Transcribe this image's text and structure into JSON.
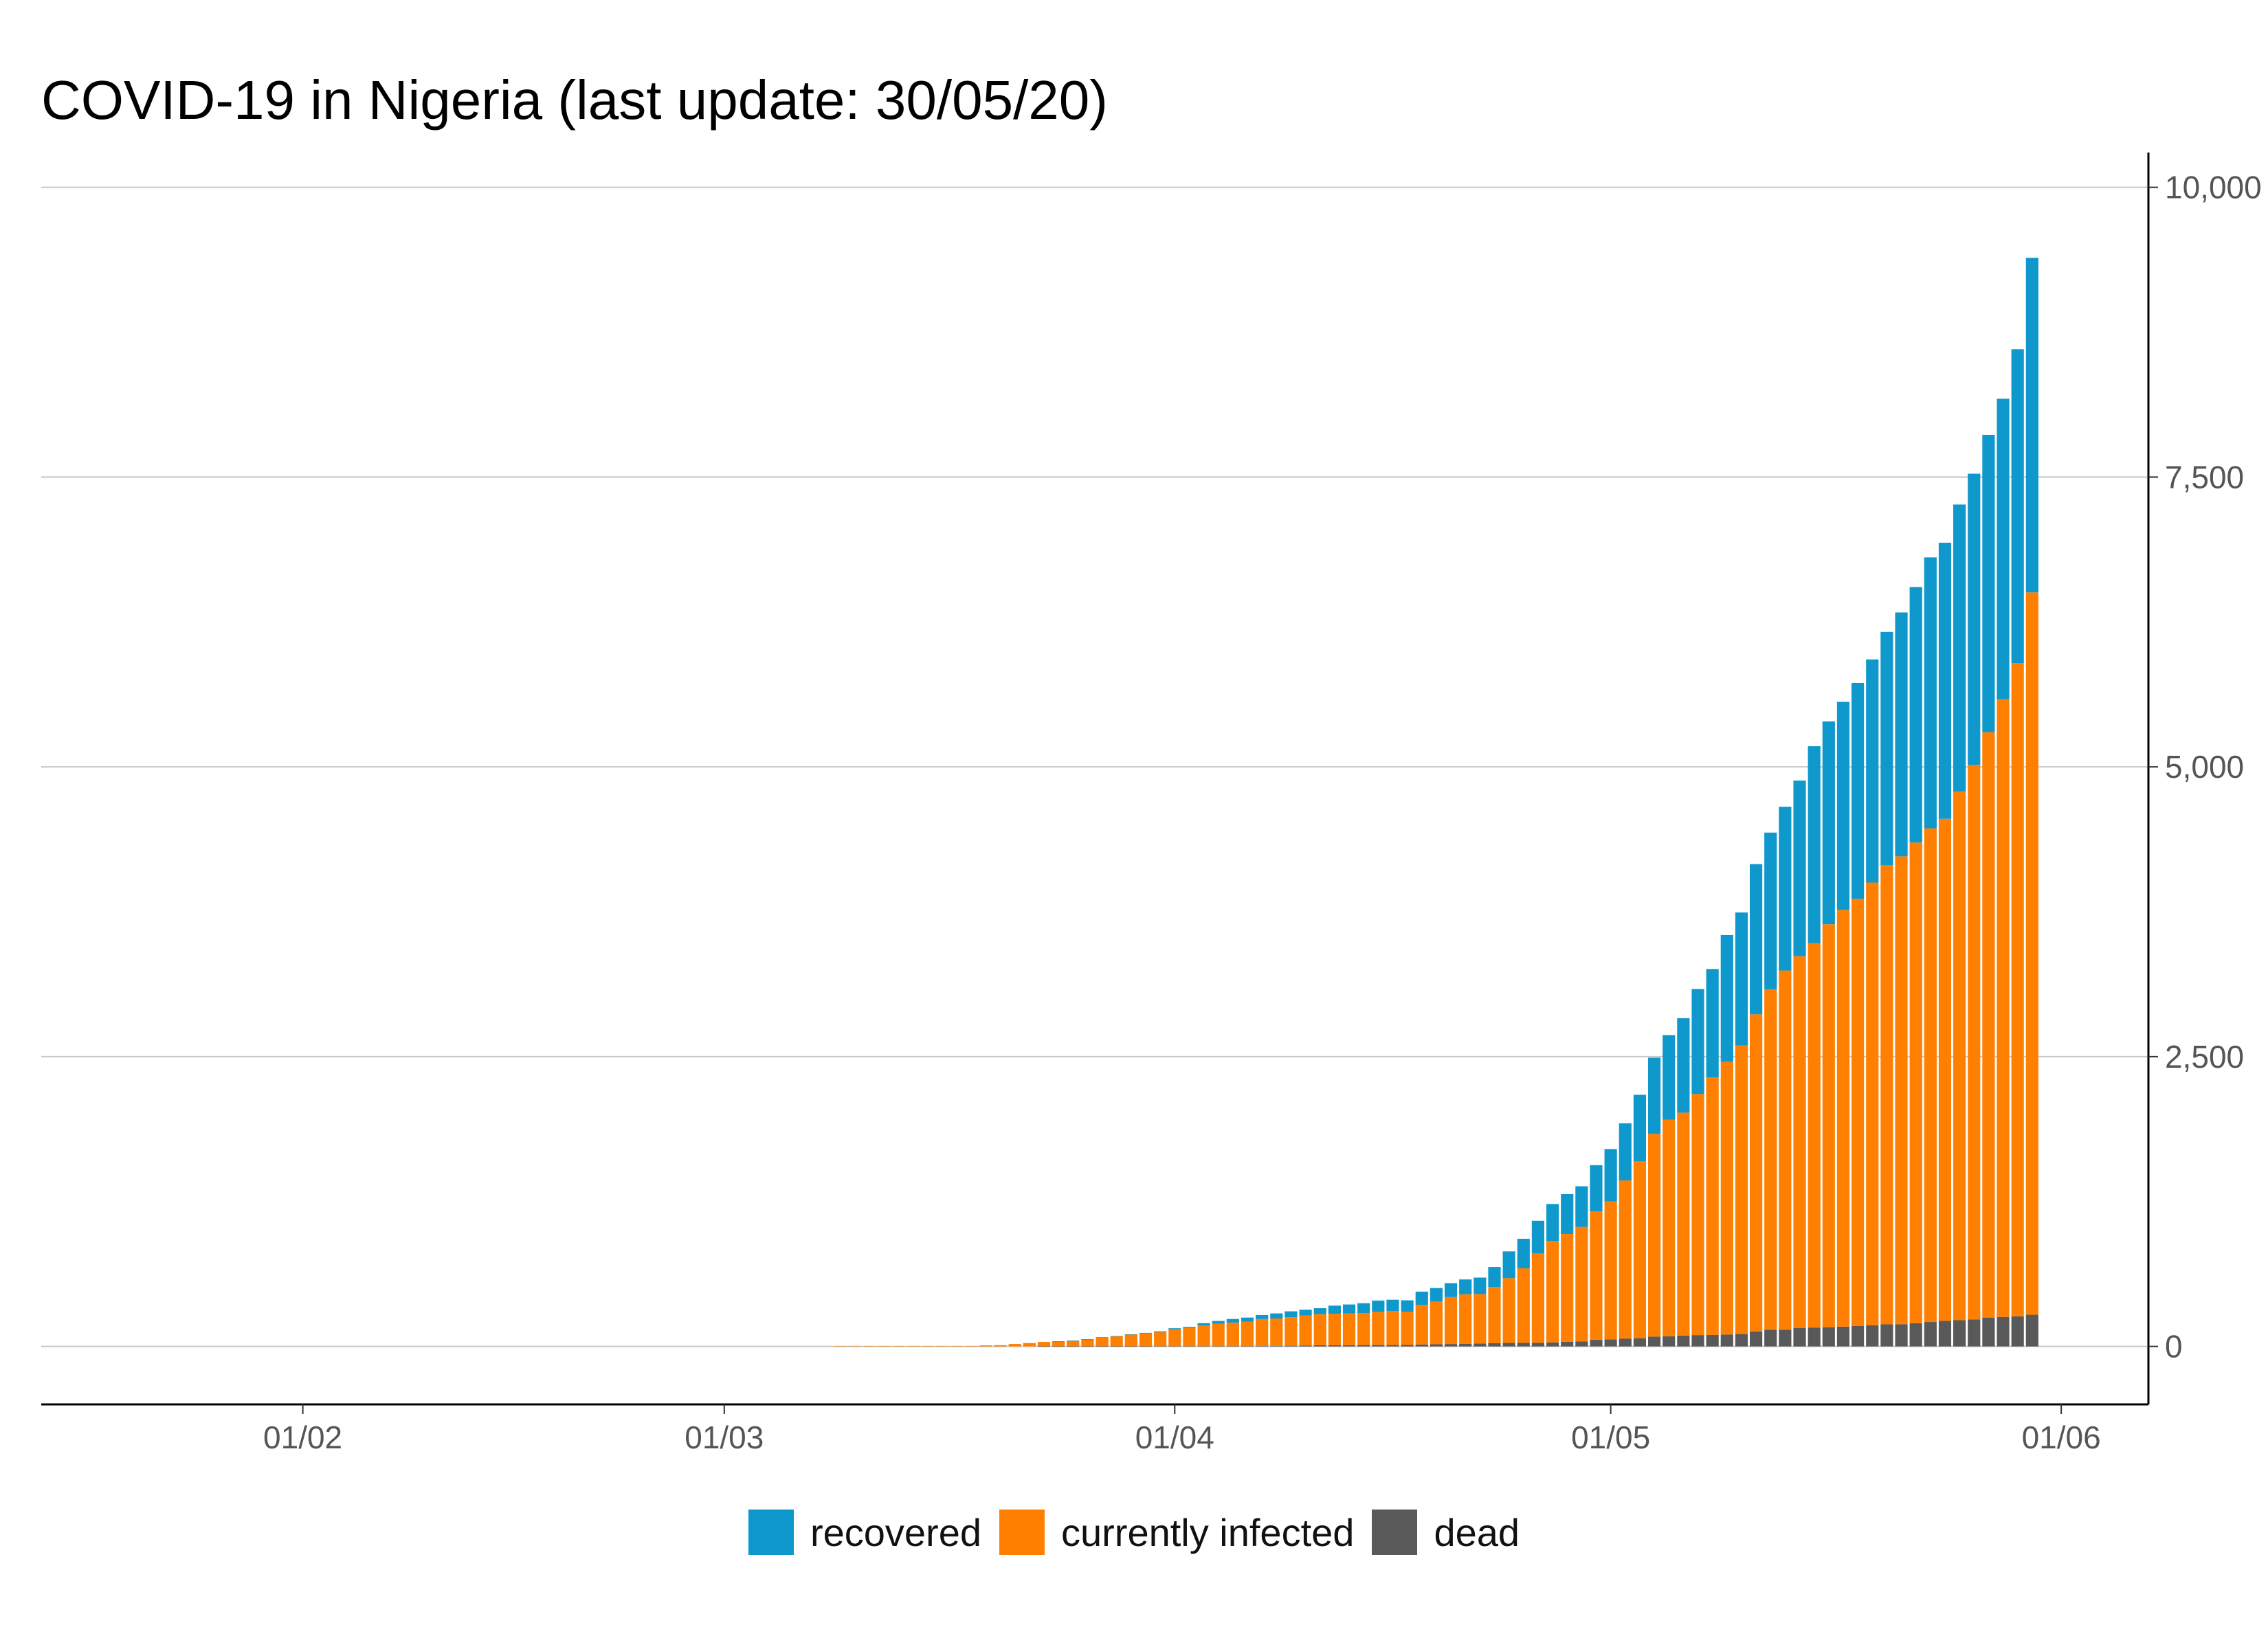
{
  "chart_data": {
    "type": "bar",
    "stacked": true,
    "title": "COVID-19 in Nigeria (last update: 30/05/20)",
    "xlabel": "",
    "ylabel": "",
    "x_axis": {
      "type": "date",
      "range": [
        "2020-01-14",
        "2020-06-07"
      ],
      "tick_values": [
        "2020-02-01",
        "2020-03-01",
        "2020-04-01",
        "2020-05-01",
        "2020-06-01"
      ],
      "tick_labels": [
        "01/02",
        "01/03",
        "01/04",
        "01/05",
        "01/06"
      ]
    },
    "y_axis": {
      "position": "right",
      "range": [
        -500,
        10300
      ],
      "tick_values": [
        0,
        2500,
        5000,
        7500,
        10000
      ],
      "tick_labels": [
        "0",
        "2,500",
        "5,000",
        "7,500",
        "10,000"
      ]
    },
    "grid": "horizontal",
    "legend": "bottom",
    "dates": [
      "2020-03-09",
      "2020-03-10",
      "2020-03-11",
      "2020-03-12",
      "2020-03-13",
      "2020-03-14",
      "2020-03-15",
      "2020-03-16",
      "2020-03-17",
      "2020-03-18",
      "2020-03-19",
      "2020-03-20",
      "2020-03-21",
      "2020-03-22",
      "2020-03-23",
      "2020-03-24",
      "2020-03-25",
      "2020-03-26",
      "2020-03-27",
      "2020-03-28",
      "2020-03-29",
      "2020-03-30",
      "2020-03-31",
      "2020-04-01",
      "2020-04-02",
      "2020-04-03",
      "2020-04-04",
      "2020-04-05",
      "2020-04-06",
      "2020-04-07",
      "2020-04-08",
      "2020-04-09",
      "2020-04-10",
      "2020-04-11",
      "2020-04-12",
      "2020-04-13",
      "2020-04-14",
      "2020-04-15",
      "2020-04-16",
      "2020-04-17",
      "2020-04-18",
      "2020-04-19",
      "2020-04-20",
      "2020-04-21",
      "2020-04-22",
      "2020-04-23",
      "2020-04-24",
      "2020-04-25",
      "2020-04-26",
      "2020-04-27",
      "2020-04-28",
      "2020-04-29",
      "2020-04-30",
      "2020-05-01",
      "2020-05-02",
      "2020-05-03",
      "2020-05-04",
      "2020-05-05",
      "2020-05-06",
      "2020-05-07",
      "2020-05-08",
      "2020-05-09",
      "2020-05-10",
      "2020-05-11",
      "2020-05-12",
      "2020-05-13",
      "2020-05-14",
      "2020-05-15",
      "2020-05-16",
      "2020-05-17",
      "2020-05-18",
      "2020-05-19",
      "2020-05-20",
      "2020-05-21",
      "2020-05-22",
      "2020-05-23",
      "2020-05-24",
      "2020-05-25",
      "2020-05-26",
      "2020-05-27",
      "2020-05-28",
      "2020-05-29",
      "2020-05-30"
    ],
    "series": [
      {
        "name": "dead",
        "color": "#595959",
        "values": [
          0,
          0,
          0,
          0,
          0,
          0,
          0,
          0,
          0,
          0,
          0,
          0,
          0,
          0,
          1,
          1,
          1,
          1,
          1,
          1,
          1,
          1,
          2,
          2,
          2,
          2,
          2,
          2,
          2,
          5,
          5,
          6,
          7,
          10,
          10,
          11,
          12,
          12,
          12,
          13,
          17,
          19,
          21,
          22,
          26,
          28,
          31,
          32,
          32,
          35,
          40,
          44,
          58,
          61,
          68,
          71,
          85,
          87,
          93,
          98,
          99,
          103,
          107,
          128,
          143,
          145,
          158,
          163,
          166,
          171,
          176,
          182,
          191,
          192,
          200,
          211,
          221,
          226,
          233,
          249,
          254,
          259,
          273
        ]
      },
      {
        "name": "currently infected",
        "color": "#ff7f00",
        "values": [
          1,
          1,
          1,
          1,
          1,
          1,
          1,
          1,
          1,
          3,
          9,
          11,
          21,
          29,
          38,
          43,
          48,
          60,
          77,
          87,
          102,
          113,
          120,
          146,
          158,
          179,
          193,
          204,
          212,
          231,
          236,
          246,
          259,
          269,
          272,
          274,
          276,
          286,
          293,
          287,
          342,
          368,
          405,
          428,
          426,
          485,
          558,
          642,
          770,
          875,
          930,
          988,
          1106,
          1189,
          1364,
          1525,
          1749,
          1869,
          1924,
          2080,
          2222,
          2353,
          2490,
          2737,
          2938,
          3098,
          3209,
          3317,
          3476,
          3595,
          3686,
          3820,
          3960,
          4036,
          4147,
          4259,
          4331,
          4562,
          4784,
          5050,
          5329,
          5636,
          6232
        ]
      },
      {
        "name": "recovered",
        "color": "#0f98cc",
        "values": [
          0,
          0,
          0,
          0,
          0,
          0,
          0,
          0,
          0,
          0,
          0,
          0,
          0,
          0,
          0,
          1,
          2,
          2,
          2,
          2,
          2,
          3,
          8,
          9,
          9,
          20,
          25,
          31,
          35,
          35,
          44,
          51,
          51,
          51,
          70,
          77,
          85,
          98,
          98,
          98,
          114,
          117,
          120,
          128,
          142,
          172,
          231,
          255,
          282,
          319,
          344,
          350,
          400,
          453,
          493,
          575,
          657,
          730,
          815,
          906,
          935,
          1093,
          1147,
          1296,
          1352,
          1413,
          1515,
          1698,
          1750,
          1795,
          1862,
          1925,
          2013,
          2104,
          2205,
          2337,
          2382,
          2475,
          2512,
          2565,
          2593,
          2708,
          2887
        ]
      }
    ]
  },
  "legend": {
    "items": [
      {
        "label": "recovered",
        "color": "#0f98cc"
      },
      {
        "label": "currently infected",
        "color": "#ff7f00"
      },
      {
        "label": "dead",
        "color": "#595959"
      }
    ]
  }
}
